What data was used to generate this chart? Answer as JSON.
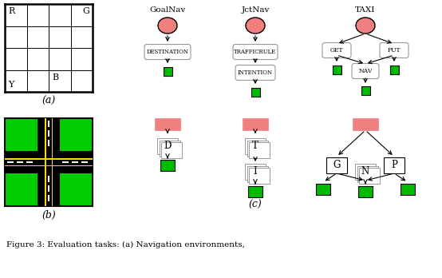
{
  "fig_width": 5.54,
  "fig_height": 3.48,
  "dpi": 100,
  "bg_color": "#ffffff",
  "salmon_color": "#F08080",
  "green_color": "#00BB00",
  "caption": "Figure 3: Evaluation tasks: (a) Navigation environments,",
  "goalnav_title": "GoalNav",
  "jctnav_title": "JctNav",
  "taxi_title": "TAXI",
  "node_destination": "DESTINATION",
  "node_trafficrule": "TRAFFICRULE",
  "node_intention": "INTENTION",
  "node_get": "GET",
  "node_put": "PUT",
  "node_nav": "NAV"
}
